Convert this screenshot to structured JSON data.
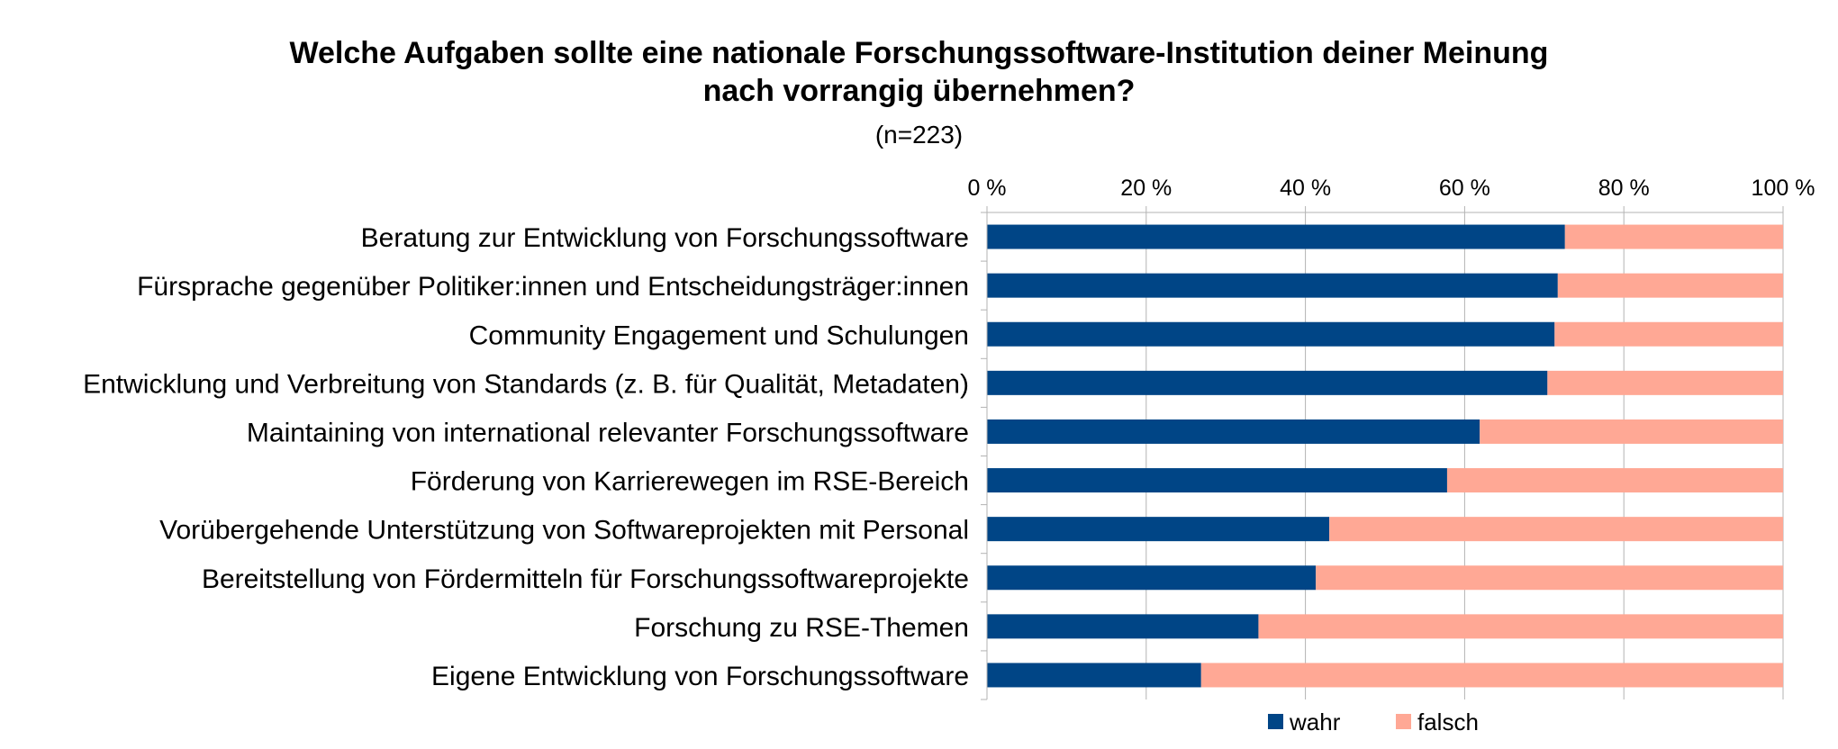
{
  "title_line1": "Welche Aufgaben sollte eine nationale Forschungssoftware-Institution deiner Meinung",
  "title_line2": "nach vorrangig übernehmen?",
  "subtitle": "(n=223)",
  "chart_data": {
    "type": "bar",
    "orientation": "horizontal",
    "stacked": true,
    "percent_stacked": true,
    "title": "Welche Aufgaben sollte eine nationale Forschungssoftware-Institution deiner Meinung nach vorrangig übernehmen?",
    "subtitle": "(n=223)",
    "categories": [
      "Beratung zur Entwicklung von Forschungssoftware",
      "Fürsprache gegenüber Politiker:innen und Entscheidungsträger:innen",
      "Community Engagement und Schulungen",
      "Entwicklung und Verbreitung von Standards (z. B. für Qualität, Metadaten)",
      "Maintaining von international relevanter Forschungssoftware",
      "Förderung von Karrierewegen im RSE-Bereich",
      "Vorübergehende Unterstützung von Softwareprojekten mit Personal",
      "Bereitstellung von Fördermitteln für Forschungssoftwareprojekte",
      "Forschung zu RSE-Themen",
      "Eigene Entwicklung von Forschungssoftware"
    ],
    "series": [
      {
        "name": "wahr",
        "color": "#004586",
        "values": [
          72.6,
          71.7,
          71.3,
          70.4,
          61.9,
          57.8,
          43.0,
          41.3,
          34.1,
          26.9
        ]
      },
      {
        "name": "falsch",
        "color": "#ffa895",
        "values": [
          27.4,
          28.3,
          28.7,
          29.6,
          38.1,
          42.2,
          57.0,
          58.7,
          65.9,
          73.1
        ]
      }
    ],
    "xlim": [
      0,
      100
    ],
    "x_ticks": [
      "0 %",
      "20 %",
      "40 %",
      "60 %",
      "80 %",
      "100 %"
    ],
    "x_axis_position": "top",
    "grid": true,
    "legend_position": "bottom"
  }
}
